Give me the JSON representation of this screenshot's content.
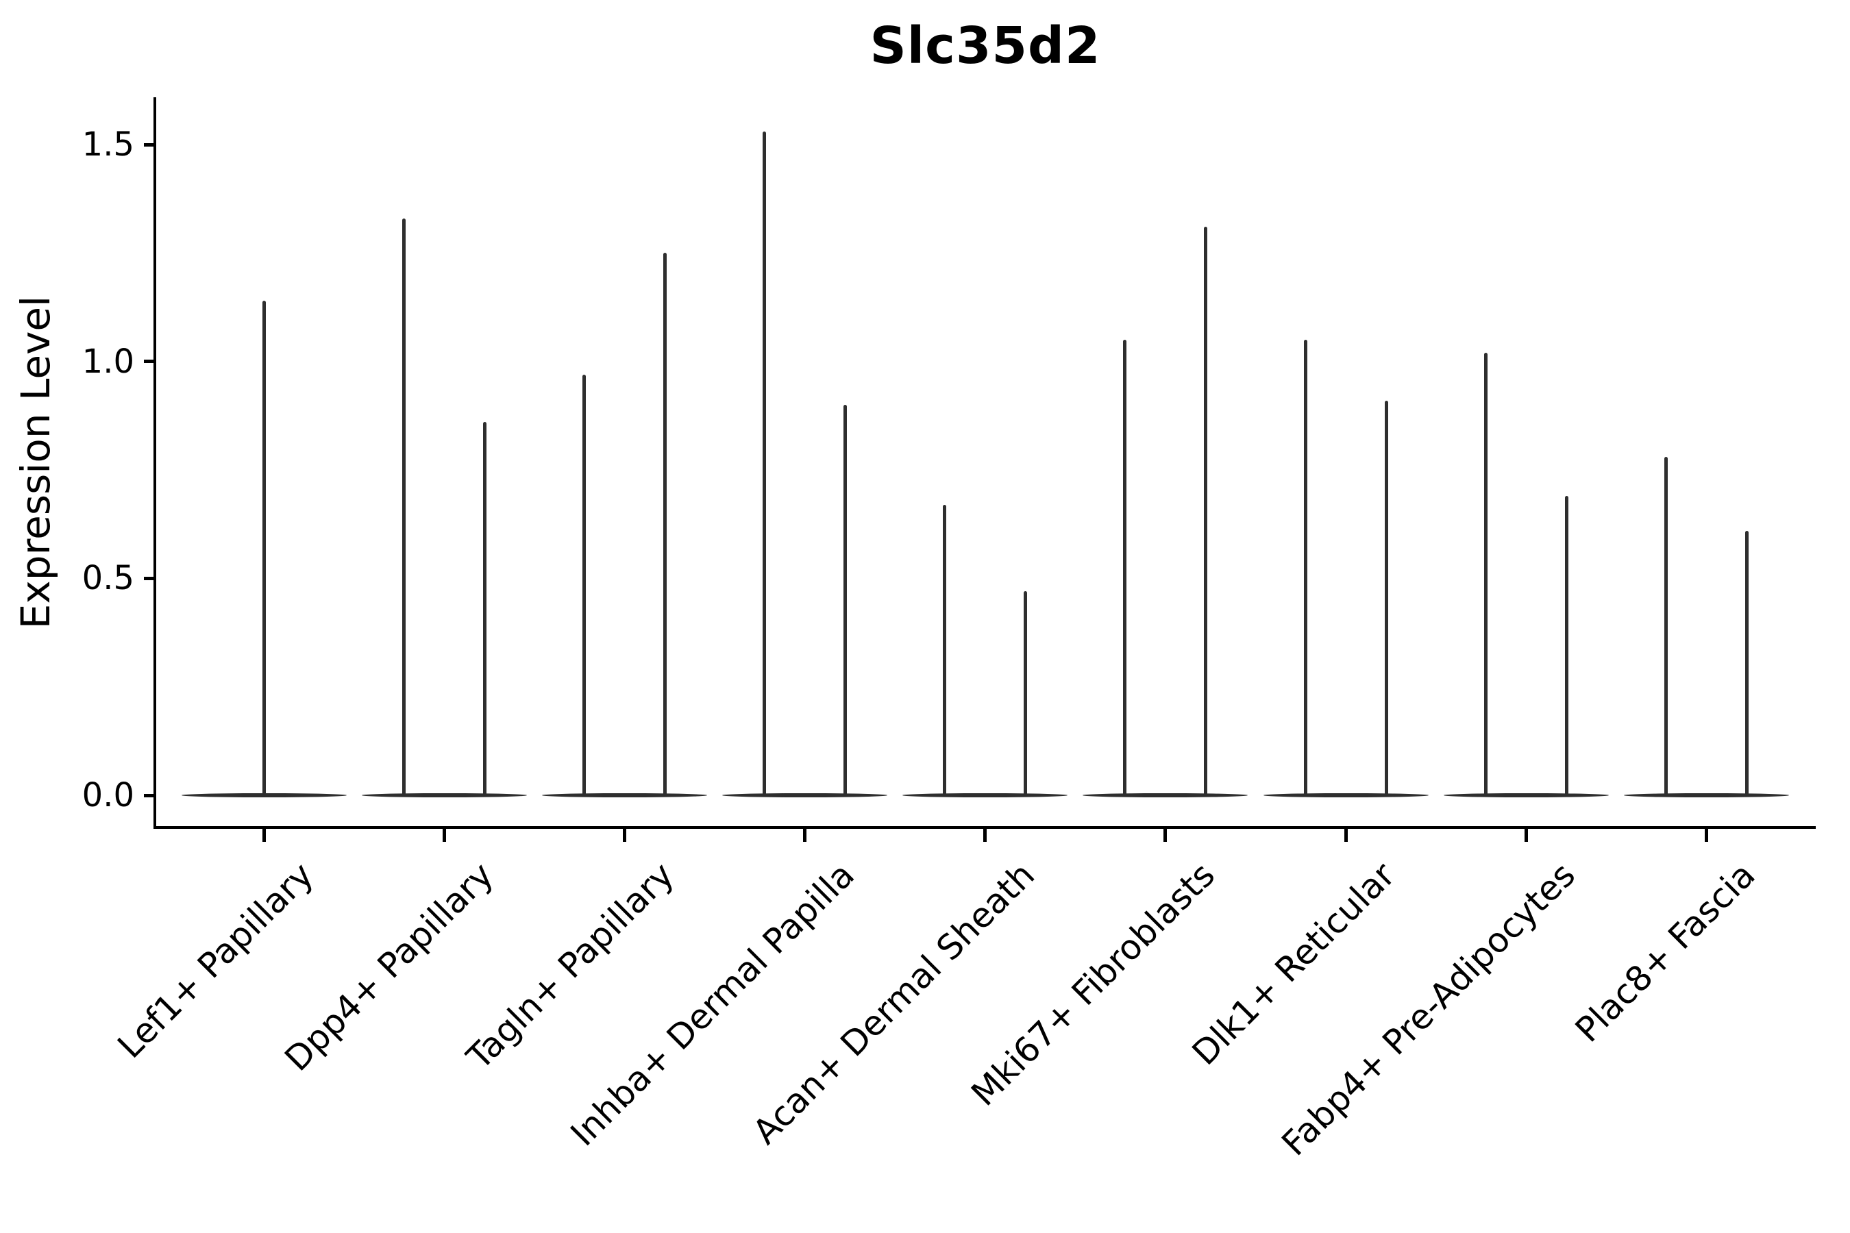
{
  "title": "Slc35d2",
  "y_axis": {
    "label": "Expression Level",
    "tick_labels": [
      "0.0",
      "0.5",
      "1.0",
      "1.5"
    ]
  },
  "chart_data": {
    "type": "violin",
    "title": "Slc35d2",
    "xlabel": "",
    "ylabel": "Expression Level",
    "ylim": [
      0,
      1.55
    ],
    "yticks": [
      0.0,
      0.5,
      1.0,
      1.5
    ],
    "grid": false,
    "legend": "none",
    "style_note": "Single-cell expression violin plot; each violin collapses to a flat bar at 0 with thin vertical spikes marking the upper expression tail.",
    "categories": [
      "Lef1+ Papillary",
      "Dpp4+ Papillary",
      "Tagln+ Papillary",
      "Inhba+ Dermal Papilla",
      "Acan+ Dermal Sheath",
      "Mki67+ Fibroblasts",
      "Dlk1+ Reticular",
      "Fabp4+ Pre-Adipocytes",
      "Plac8+ Fascia"
    ],
    "violins": [
      {
        "category": "Lef1+ Papillary",
        "body_value": 0,
        "spikes": [
          {
            "pos": "center",
            "max": 1.14
          }
        ]
      },
      {
        "category": "Dpp4+ Papillary",
        "body_value": 0,
        "spikes": [
          {
            "pos": "left",
            "max": 1.33
          },
          {
            "pos": "right",
            "max": 0.86
          }
        ]
      },
      {
        "category": "Tagln+ Papillary",
        "body_value": 0,
        "spikes": [
          {
            "pos": "left",
            "max": 0.97
          },
          {
            "pos": "right",
            "max": 1.25
          }
        ]
      },
      {
        "category": "Inhba+ Dermal Papilla",
        "body_value": 0,
        "spikes": [
          {
            "pos": "left",
            "max": 1.53
          },
          {
            "pos": "right",
            "max": 0.9
          }
        ]
      },
      {
        "category": "Acan+ Dermal Sheath",
        "body_value": 0,
        "spikes": [
          {
            "pos": "left",
            "max": 0.67
          },
          {
            "pos": "right",
            "max": 0.47
          }
        ]
      },
      {
        "category": "Mki67+ Fibroblasts",
        "body_value": 0,
        "spikes": [
          {
            "pos": "left",
            "max": 1.05
          },
          {
            "pos": "right",
            "max": 1.31
          }
        ]
      },
      {
        "category": "Dlk1+ Reticular",
        "body_value": 0,
        "spikes": [
          {
            "pos": "left",
            "max": 1.05
          },
          {
            "pos": "right",
            "max": 0.91
          }
        ]
      },
      {
        "category": "Fabp4+ Pre-Adipocytes",
        "body_value": 0,
        "spikes": [
          {
            "pos": "left",
            "max": 1.02
          },
          {
            "pos": "right",
            "max": 0.69
          }
        ]
      },
      {
        "category": "Plac8+ Fascia",
        "body_value": 0,
        "spikes": [
          {
            "pos": "left",
            "max": 0.78
          },
          {
            "pos": "right",
            "max": 0.61
          }
        ]
      }
    ]
  },
  "colors": {
    "background": "#ffffff",
    "violin": "#2e2e2e",
    "axis": "#000000",
    "text": "#000000"
  }
}
